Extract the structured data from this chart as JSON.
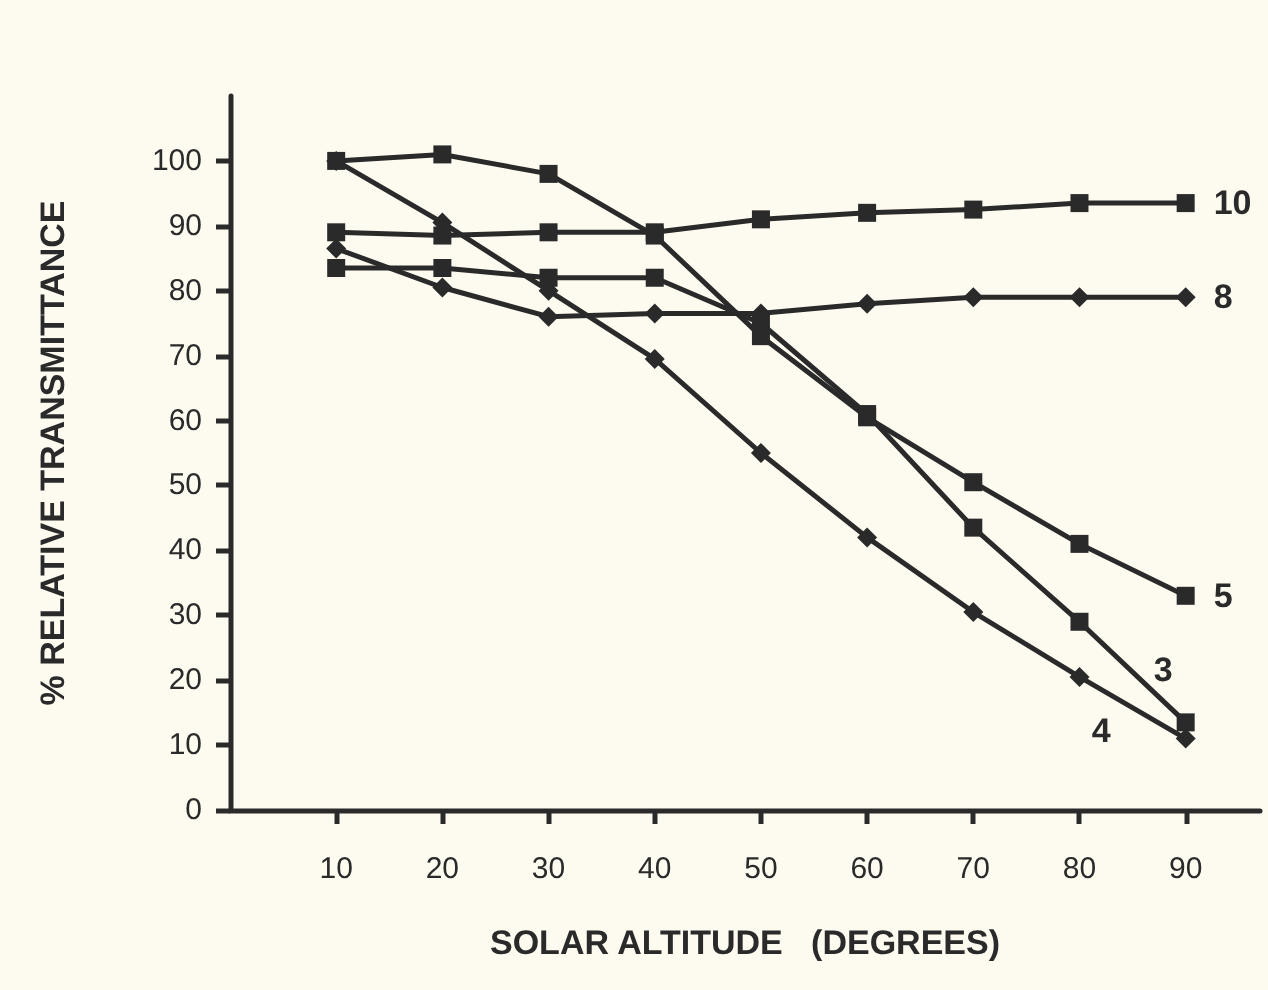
{
  "chart_data": {
    "type": "line",
    "xlabel": "SOLAR ALTITUDE   (DEGREES)",
    "ylabel": "% RELATIVE TRANSMITTANCE",
    "x": [
      10,
      20,
      30,
      40,
      50,
      60,
      70,
      80,
      90
    ],
    "xlim": [
      0,
      97
    ],
    "xticks": [
      10,
      20,
      30,
      40,
      50,
      60,
      70,
      80,
      90
    ],
    "ylim": [
      0,
      110
    ],
    "yticks": [
      0,
      10,
      20,
      30,
      40,
      50,
      60,
      70,
      80,
      90,
      100
    ],
    "grid": false,
    "legend": false,
    "line_style": "solid",
    "series": [
      {
        "name": "10",
        "color": "#2a2a2a",
        "marker": "square",
        "values": [
          89,
          88.5,
          89,
          89,
          91,
          92,
          92.5,
          93.5,
          93.5
        ]
      },
      {
        "name": "8",
        "color": "#2a2a2a",
        "marker": "diamond",
        "values": [
          86.5,
          80.5,
          76,
          76.5,
          76.5,
          78,
          79,
          79,
          79
        ]
      },
      {
        "name": "5",
        "color": "#2a2a2a",
        "marker": "square",
        "values": [
          100,
          101,
          98,
          88.5,
          73,
          60.5,
          50.5,
          41,
          33
        ]
      },
      {
        "name": "3",
        "color": "#2a2a2a",
        "marker": "square",
        "values": [
          83.5,
          83.5,
          82,
          82,
          75,
          61,
          43.5,
          29,
          13.5
        ]
      },
      {
        "name": "4",
        "color": "#2a2a2a",
        "marker": "diamond",
        "values": [
          100,
          90.5,
          80,
          69.5,
          55,
          42,
          30.5,
          20.5,
          11
        ]
      }
    ]
  }
}
